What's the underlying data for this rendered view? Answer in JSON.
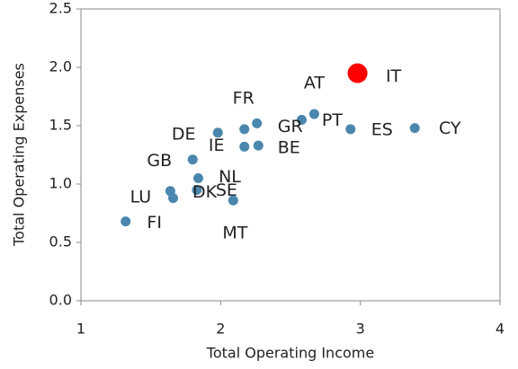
{
  "chart_data": {
    "type": "scatter",
    "xlabel": "Total Operating Income",
    "ylabel": "Total Operating Expenses",
    "labels": [
      "IT",
      "AT",
      "PT",
      "GR",
      "FR",
      "DE",
      "ES",
      "CY",
      "IE",
      "BE",
      "GB",
      "NL",
      "SE",
      "LU",
      "DK",
      "MT",
      "FI"
    ],
    "x": [
      2.98,
      2.67,
      2.58,
      2.26,
      2.17,
      1.98,
      2.93,
      3.39,
      2.17,
      2.27,
      1.8,
      1.84,
      1.83,
      1.64,
      1.66,
      2.09,
      1.32
    ],
    "y": [
      1.95,
      1.6,
      1.55,
      1.52,
      1.47,
      1.44,
      1.47,
      1.48,
      1.32,
      1.33,
      1.21,
      1.05,
      0.95,
      0.94,
      0.88,
      0.86,
      0.68
    ],
    "colors": [
      "#ff0000",
      "#4a86ad",
      "#4a86ad",
      "#4a86ad",
      "#4a86ad",
      "#4a86ad",
      "#4a86ad",
      "#4a86ad",
      "#4a86ad",
      "#4a86ad",
      "#4a86ad",
      "#4a86ad",
      "#4a86ad",
      "#4a86ad",
      "#4a86ad",
      "#4a86ad",
      "#4a86ad"
    ],
    "xlim": [
      1,
      4
    ],
    "xticks": [
      1,
      2,
      3,
      4
    ],
    "ylim": [
      0,
      2.5
    ],
    "yticks": [
      {
        "value": 0,
        "label": "0.0"
      },
      {
        "value": 0.5,
        "label": "0.5"
      },
      {
        "value": 1,
        "label": "1.0"
      },
      {
        "value": 1.5,
        "label": "1.5"
      },
      {
        "value": 2,
        "label": "2.0"
      },
      {
        "value": 2.5,
        "label": "2.5"
      }
    ],
    "grid": false
  }
}
